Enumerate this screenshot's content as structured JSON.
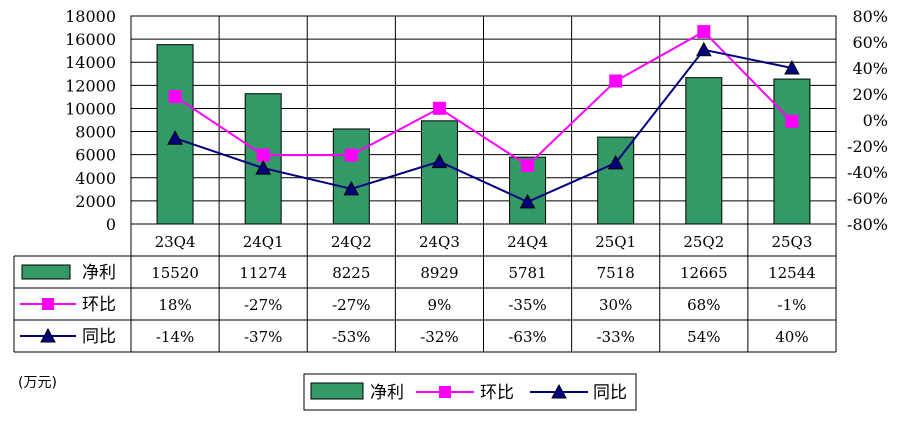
{
  "chart_data": {
    "type": "bar",
    "categories": [
      "23Q4",
      "24Q1",
      "24Q2",
      "24Q3",
      "24Q4",
      "25Q1",
      "25Q2",
      "25Q3"
    ],
    "series": [
      {
        "name": "净利",
        "kind": "bar",
        "axis": "left",
        "color": "#339966",
        "values": [
          15520,
          11274,
          8225,
          8929,
          5781,
          7518,
          12665,
          12544
        ],
        "labels": [
          "15520",
          "11274",
          "8225",
          "8929",
          "5781",
          "7518",
          "12665",
          "12544"
        ]
      },
      {
        "name": "环比",
        "kind": "line",
        "marker": "square",
        "axis": "right",
        "color": "#FF00FF",
        "values": [
          18,
          -27,
          -27,
          9,
          -35,
          30,
          68,
          -1
        ],
        "labels": [
          "18%",
          "-27%",
          "-27%",
          "9%",
          "-35%",
          "30%",
          "68%",
          "-1%"
        ]
      },
      {
        "name": "同比",
        "kind": "line",
        "marker": "triangle",
        "axis": "right",
        "color": "#000080",
        "values": [
          -14,
          -37,
          -53,
          -32,
          -63,
          -33,
          54,
          40
        ],
        "labels": [
          "-14%",
          "-37%",
          "-53%",
          "-32%",
          "-63%",
          "-33%",
          "54%",
          "40%"
        ]
      }
    ],
    "y_left": {
      "min": 0,
      "max": 18000,
      "step": 2000,
      "ticks": [
        "0",
        "2000",
        "4000",
        "6000",
        "8000",
        "10000",
        "12000",
        "14000",
        "16000",
        "18000"
      ]
    },
    "y_right": {
      "min": -80,
      "max": 80,
      "step": 20,
      "ticks": [
        "-80%",
        "-60%",
        "-40%",
        "-20%",
        "0%",
        "20%",
        "40%",
        "60%",
        "80%"
      ]
    },
    "grid": true,
    "data_table": true,
    "legend_position": "bottom",
    "unit_label": "(万元)"
  }
}
